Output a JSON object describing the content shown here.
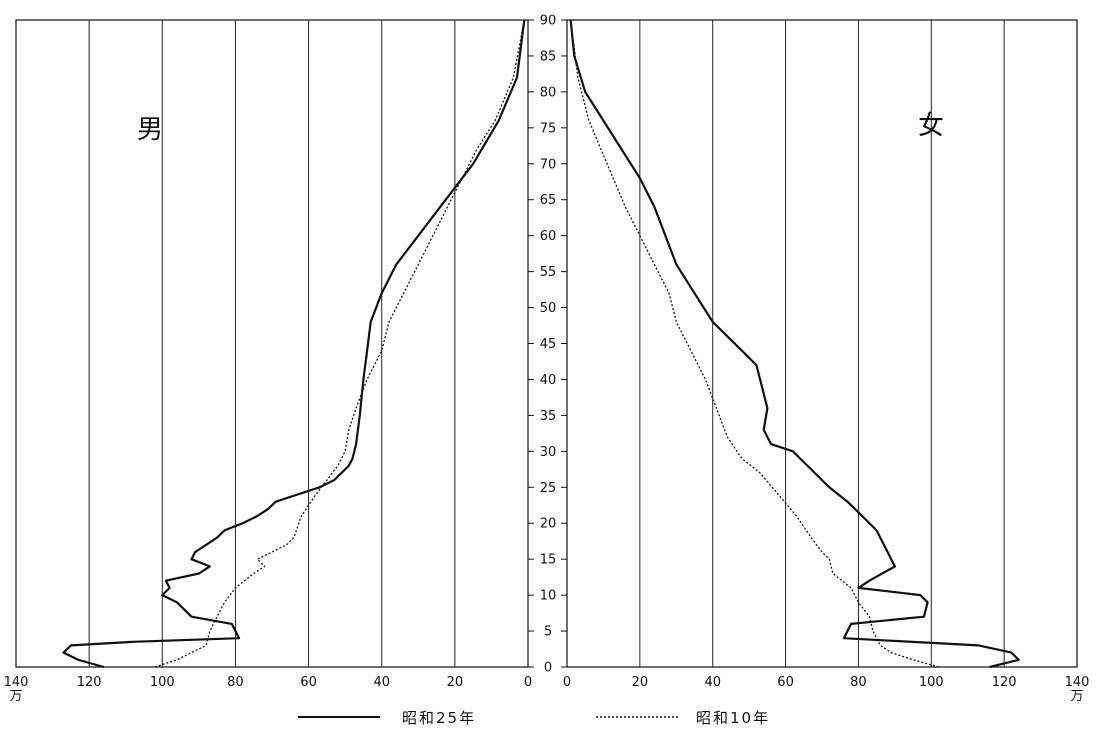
{
  "chart_data": {
    "type": "line",
    "title": "",
    "panel_labels": {
      "left": "男",
      "right": "女"
    },
    "unit_labels": {
      "left": "万",
      "right": "万"
    },
    "x_ticks_left": [
      "140",
      "120",
      "100",
      "80",
      "60",
      "40",
      "20",
      "0"
    ],
    "x_ticks_right": [
      "0",
      "20",
      "40",
      "60",
      "80",
      "100",
      "120",
      "140"
    ],
    "y_ticks": [
      "0",
      "5",
      "10",
      "15",
      "20",
      "25",
      "30",
      "35",
      "40",
      "45",
      "50",
      "55",
      "60",
      "65",
      "70",
      "75",
      "80",
      "85",
      "90"
    ],
    "xlim": [
      0,
      140
    ],
    "ylim": [
      0,
      90
    ],
    "grid": "vertical lines every 20",
    "legend": [
      {
        "label": "昭和25年",
        "style": "solid"
      },
      {
        "label": "昭和10年",
        "style": "dotted"
      }
    ],
    "series": [
      {
        "name": "昭和25年",
        "sex": "male",
        "style": "solid",
        "x": [
          116,
          123,
          127,
          125,
          108,
          79,
          81,
          92,
          96,
          100,
          98,
          99,
          90,
          87,
          92,
          91,
          88,
          85,
          83,
          78,
          74,
          71,
          69,
          63,
          57,
          53,
          51,
          49,
          48,
          47,
          46,
          45,
          44,
          43,
          40,
          36,
          30,
          24,
          15,
          8,
          3,
          1
        ],
        "y": [
          0,
          1,
          2,
          3,
          3.5,
          4,
          6,
          7,
          9,
          10,
          11,
          12,
          13,
          14,
          15,
          16,
          17,
          18,
          19,
          20,
          21,
          22,
          23,
          24,
          25,
          26,
          27,
          28,
          29,
          31,
          35,
          40,
          44,
          48,
          52,
          56,
          60,
          64,
          70,
          76,
          82,
          90
        ]
      },
      {
        "name": "昭和10年",
        "sex": "male",
        "style": "dotted",
        "x": [
          102,
          96,
          92,
          88,
          87,
          85,
          83,
          80,
          75,
          72,
          74,
          70,
          66,
          64,
          62,
          58,
          55,
          52,
          50,
          49,
          47,
          44,
          40,
          38,
          34,
          30,
          26,
          22,
          18,
          14,
          9,
          4,
          1
        ],
        "y": [
          0,
          1,
          2,
          3,
          5,
          7,
          9,
          11,
          13,
          14,
          15,
          16,
          17,
          18,
          21,
          24,
          26,
          28,
          30,
          33,
          36,
          40,
          44,
          48,
          52,
          56,
          60,
          64,
          68,
          72,
          76,
          82,
          90
        ]
      },
      {
        "name": "昭和25年",
        "sex": "female",
        "style": "solid",
        "x": [
          116,
          124,
          122,
          113,
          76,
          78,
          98,
          99,
          97,
          80,
          83,
          90,
          89,
          87,
          85,
          81,
          77,
          72,
          68,
          64,
          62,
          56,
          54,
          55,
          53,
          52,
          48,
          44,
          40,
          35,
          30,
          27,
          24,
          20,
          15,
          10,
          5,
          2,
          1
        ],
        "y": [
          0,
          1,
          2,
          3,
          4,
          6,
          7,
          9,
          10,
          11,
          12,
          14,
          15,
          17,
          19,
          21,
          23,
          25,
          27,
          29,
          30,
          31,
          33,
          36,
          40,
          42,
          44,
          46,
          48,
          52,
          56,
          60,
          64,
          68,
          72,
          76,
          80,
          85,
          90
        ]
      },
      {
        "name": "昭和10年",
        "sex": "female",
        "style": "dotted",
        "x": [
          102,
          95,
          89,
          86,
          84,
          83,
          80,
          78,
          73,
          72,
          70,
          67,
          63,
          58,
          53,
          48,
          44,
          41,
          38,
          34,
          30,
          28,
          24,
          20,
          16,
          11,
          6,
          3,
          1
        ],
        "y": [
          0,
          1,
          2,
          3,
          5,
          7,
          9,
          11,
          13,
          15,
          16,
          18,
          21,
          24,
          27,
          29,
          32,
          36,
          40,
          44,
          48,
          52,
          56,
          60,
          64,
          70,
          76,
          82,
          90
        ]
      }
    ]
  }
}
